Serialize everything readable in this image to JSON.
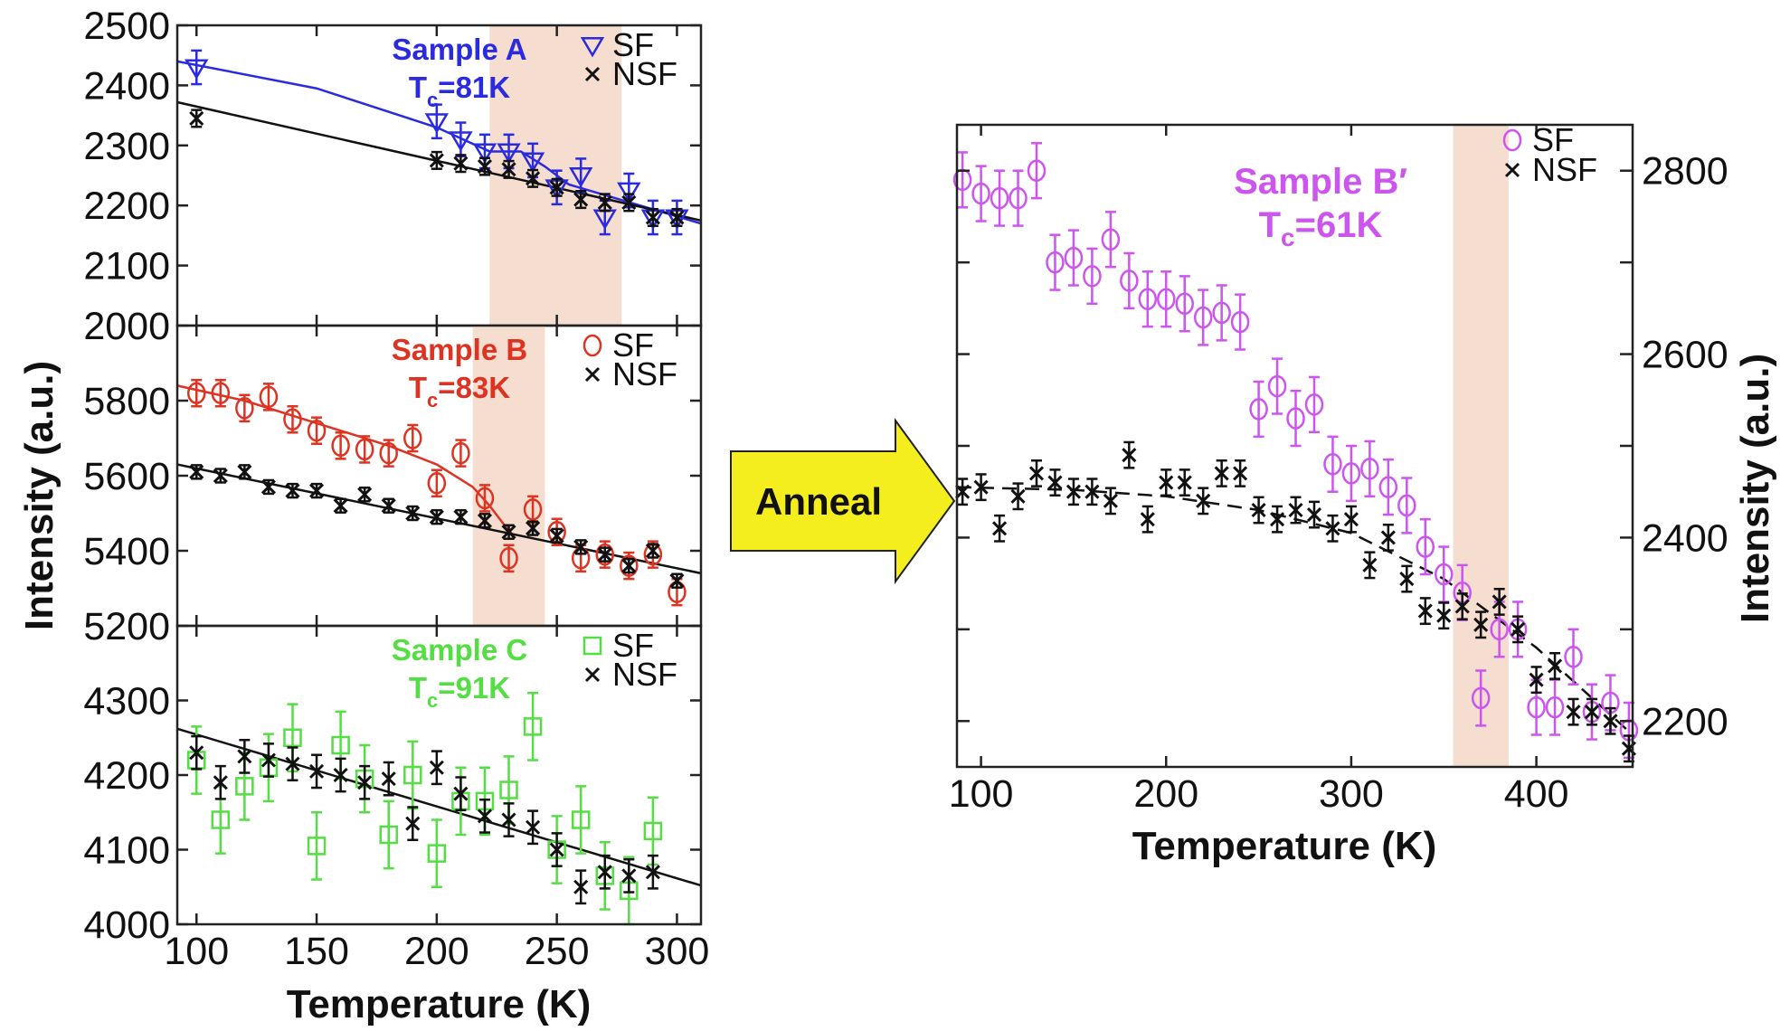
{
  "figure": {
    "arrow_label": "Anneal",
    "x_label": "Temperature (K)",
    "y_label": "Intensity (a.u.)"
  },
  "colors": {
    "sample_a": "#2a2adf",
    "sample_b": "#dd3322",
    "sample_c": "#55dd44",
    "sample_b_prime": "#cc55ee",
    "nsf": "#111111",
    "band": "#f5ddcf",
    "arrow_fill": "#f5ee1e"
  },
  "icons": {
    "sf_a": "triangle-down-icon",
    "sf_b": "circle-icon",
    "sf_c": "square-icon",
    "nsf": "cross-icon"
  },
  "chart_data": [
    {
      "type": "scatter",
      "panel": "A",
      "sample_label": "Sample A",
      "tc_label_t": "T",
      "tc_label_sub": "c",
      "tc_label_rest": "=81K",
      "legend": [
        "SF",
        "NSF"
      ],
      "xlim": [
        92,
        310
      ],
      "ylim": [
        2000,
        2500
      ],
      "yticks": [
        "2000",
        "2100",
        "2200",
        "2300",
        "2400",
        "2500"
      ],
      "yticks_v": [
        2000,
        2100,
        2200,
        2300,
        2400,
        2500
      ],
      "shaded_band": [
        222,
        277
      ],
      "series": [
        {
          "name": "SF",
          "marker": "triangle",
          "x": [
            100,
            200,
            210,
            220,
            230,
            240,
            250,
            260,
            270,
            280,
            290,
            300
          ],
          "y": [
            2430,
            2340,
            2310,
            2290,
            2290,
            2275,
            2230,
            2250,
            2180,
            2225,
            2180,
            2180
          ],
          "err": [
            28,
            28,
            28,
            28,
            28,
            28,
            28,
            28,
            28,
            28,
            28,
            28
          ]
        },
        {
          "name": "NSF",
          "marker": "cross",
          "x": [
            100,
            200,
            210,
            220,
            230,
            240,
            250,
            260,
            270,
            280,
            290,
            300
          ],
          "y": [
            2345,
            2275,
            2270,
            2265,
            2260,
            2245,
            2230,
            2210,
            2205,
            2205,
            2180,
            2180
          ],
          "err": [
            14,
            14,
            14,
            14,
            14,
            14,
            14,
            14,
            14,
            14,
            14,
            14
          ]
        }
      ],
      "fit_sf": {
        "x": [
          92,
          150,
          200,
          222,
          235,
          245,
          255,
          310
        ],
        "y": [
          2440,
          2395,
          2330,
          2290,
          2290,
          2265,
          2235,
          2170
        ]
      },
      "fit_nsf": {
        "x": [
          92,
          310
        ],
        "y": [
          2372,
          2175
        ]
      }
    },
    {
      "type": "scatter",
      "panel": "B",
      "sample_label": "Sample B",
      "tc_label_t": "T",
      "tc_label_sub": "c",
      "tc_label_rest": "=83K",
      "legend": [
        "SF",
        "NSF"
      ],
      "xlim": [
        92,
        310
      ],
      "ylim": [
        5200,
        6000
      ],
      "yticks": [
        "5200",
        "5400",
        "5600",
        "5800"
      ],
      "yticks_v": [
        5200,
        5400,
        5600,
        5800
      ],
      "shaded_band": [
        215,
        245
      ],
      "series": [
        {
          "name": "SF",
          "marker": "circle",
          "x": [
            100,
            110,
            120,
            130,
            140,
            150,
            160,
            170,
            180,
            190,
            200,
            210,
            220,
            230,
            240,
            250,
            260,
            270,
            280,
            290,
            300
          ],
          "y": [
            5820,
            5820,
            5780,
            5810,
            5750,
            5720,
            5680,
            5670,
            5660,
            5700,
            5580,
            5660,
            5540,
            5380,
            5510,
            5450,
            5380,
            5390,
            5360,
            5390,
            5290
          ],
          "err": [
            35,
            35,
            35,
            35,
            35,
            35,
            35,
            35,
            35,
            35,
            35,
            35,
            35,
            35,
            35,
            35,
            35,
            35,
            35,
            35,
            35
          ]
        },
        {
          "name": "NSF",
          "marker": "cross",
          "x": [
            100,
            110,
            120,
            130,
            140,
            150,
            160,
            170,
            180,
            190,
            200,
            210,
            220,
            230,
            240,
            250,
            260,
            270,
            280,
            290,
            300
          ],
          "y": [
            5610,
            5600,
            5610,
            5570,
            5560,
            5560,
            5520,
            5550,
            5520,
            5500,
            5490,
            5490,
            5480,
            5450,
            5460,
            5440,
            5410,
            5390,
            5360,
            5400,
            5320
          ],
          "err": [
            18,
            18,
            18,
            18,
            18,
            18,
            18,
            18,
            18,
            18,
            18,
            18,
            18,
            18,
            18,
            18,
            18,
            18,
            18,
            18,
            18
          ]
        }
      ],
      "fit_sf": {
        "x": [
          92,
          120,
          150,
          180,
          200,
          215,
          222,
          228,
          232
        ],
        "y": [
          5840,
          5800,
          5740,
          5680,
          5630,
          5570,
          5520,
          5470,
          5440
        ]
      },
      "fit_nsf": {
        "x": [
          92,
          310
        ],
        "y": [
          5630,
          5340
        ]
      }
    },
    {
      "type": "scatter",
      "panel": "C",
      "sample_label": "Sample C",
      "tc_label_t": "T",
      "tc_label_sub": "c",
      "tc_label_rest": "=91K",
      "legend": [
        "SF",
        "NSF"
      ],
      "xlim": [
        92,
        310
      ],
      "ylim": [
        4000,
        4400
      ],
      "xticks": [
        "100",
        "150",
        "200",
        "250",
        "300"
      ],
      "xticks_v": [
        100,
        150,
        200,
        250,
        300
      ],
      "yticks": [
        "4000",
        "4100",
        "4200",
        "4300"
      ],
      "yticks_v": [
        4000,
        4100,
        4200,
        4300
      ],
      "series": [
        {
          "name": "SF",
          "marker": "square",
          "x": [
            100,
            110,
            120,
            130,
            140,
            150,
            160,
            170,
            180,
            190,
            200,
            210,
            220,
            230,
            240,
            250,
            260,
            270,
            280,
            290
          ],
          "y": [
            4220,
            4140,
            4185,
            4210,
            4250,
            4105,
            4240,
            4195,
            4120,
            4200,
            4095,
            4165,
            4165,
            4180,
            4265,
            4100,
            4140,
            4065,
            4045,
            4125
          ],
          "err": [
            45,
            45,
            45,
            45,
            45,
            45,
            45,
            45,
            45,
            45,
            45,
            45,
            45,
            45,
            45,
            45,
            45,
            45,
            45,
            45
          ]
        },
        {
          "name": "NSF",
          "marker": "cross",
          "x": [
            100,
            110,
            120,
            130,
            140,
            150,
            160,
            170,
            180,
            190,
            200,
            210,
            220,
            230,
            240,
            250,
            260,
            270,
            280,
            290
          ],
          "y": [
            4230,
            4190,
            4225,
            4220,
            4215,
            4205,
            4200,
            4190,
            4195,
            4135,
            4210,
            4175,
            4145,
            4140,
            4130,
            4100,
            4050,
            4070,
            4065,
            4070
          ],
          "err": [
            22,
            22,
            22,
            22,
            22,
            22,
            22,
            22,
            22,
            22,
            22,
            22,
            22,
            22,
            22,
            22,
            22,
            22,
            22,
            22
          ]
        }
      ],
      "fit_nsf": {
        "x": [
          92,
          310
        ],
        "y": [
          4262,
          4052
        ]
      }
    },
    {
      "type": "scatter",
      "panel": "B-prime",
      "sample_label": "Sample B′",
      "tc_label_t": "T",
      "tc_label_sub": "c",
      "tc_label_rest": "=61K",
      "legend": [
        "SF",
        "NSF"
      ],
      "xlim": [
        87,
        452
      ],
      "ylim": [
        2150,
        2850
      ],
      "xticks": [
        "100",
        "200",
        "300",
        "400"
      ],
      "xticks_v": [
        100,
        200,
        300,
        400
      ],
      "yticks": [
        "2200",
        "2400",
        "2600",
        "2800"
      ],
      "yticks_v": [
        2200,
        2400,
        2600,
        2800
      ],
      "yticks_minor": [
        2300,
        2500,
        2700
      ],
      "shaded_band": [
        355,
        385
      ],
      "series": [
        {
          "name": "SF",
          "marker": "circle",
          "x": [
            90,
            100,
            110,
            120,
            130,
            140,
            150,
            160,
            170,
            180,
            190,
            200,
            210,
            220,
            230,
            240,
            250,
            260,
            270,
            280,
            290,
            300,
            310,
            320,
            330,
            340,
            350,
            360,
            370,
            380,
            390,
            400,
            410,
            420,
            430,
            440,
            450
          ],
          "y": [
            2790,
            2775,
            2770,
            2770,
            2800,
            2700,
            2705,
            2685,
            2725,
            2680,
            2660,
            2660,
            2655,
            2640,
            2645,
            2635,
            2540,
            2565,
            2530,
            2545,
            2480,
            2470,
            2475,
            2455,
            2435,
            2390,
            2360,
            2340,
            2225,
            2300,
            2300,
            2215,
            2215,
            2270,
            2210,
            2220,
            2190
          ],
          "err": [
            30,
            30,
            30,
            30,
            30,
            30,
            30,
            30,
            30,
            30,
            30,
            30,
            30,
            30,
            30,
            30,
            30,
            30,
            30,
            30,
            30,
            30,
            30,
            30,
            30,
            30,
            30,
            30,
            30,
            30,
            30,
            30,
            30,
            30,
            30,
            30,
            30
          ]
        },
        {
          "name": "NSF",
          "marker": "cross",
          "x": [
            90,
            100,
            110,
            120,
            130,
            140,
            150,
            160,
            170,
            180,
            190,
            200,
            210,
            220,
            230,
            240,
            250,
            260,
            270,
            280,
            290,
            300,
            310,
            320,
            330,
            340,
            350,
            360,
            370,
            380,
            390,
            400,
            410,
            420,
            430,
            440,
            450
          ],
          "y": [
            2450,
            2455,
            2410,
            2445,
            2470,
            2460,
            2450,
            2450,
            2440,
            2490,
            2420,
            2460,
            2460,
            2440,
            2470,
            2470,
            2430,
            2420,
            2430,
            2425,
            2410,
            2420,
            2370,
            2400,
            2355,
            2320,
            2315,
            2325,
            2305,
            2330,
            2300,
            2245,
            2260,
            2210,
            2210,
            2200,
            2170
          ],
          "err": [
            14,
            14,
            14,
            14,
            14,
            14,
            14,
            14,
            14,
            14,
            14,
            14,
            14,
            14,
            14,
            14,
            14,
            14,
            14,
            14,
            14,
            14,
            14,
            14,
            14,
            14,
            14,
            14,
            14,
            14,
            14,
            14,
            14,
            14,
            14,
            14,
            14
          ]
        }
      ],
      "fit_nsf_dashed": {
        "x": [
          87,
          150,
          200,
          250,
          300,
          350,
          400,
          452
        ],
        "y": [
          2455,
          2452,
          2445,
          2430,
          2405,
          2355,
          2280,
          2185
        ]
      }
    }
  ]
}
